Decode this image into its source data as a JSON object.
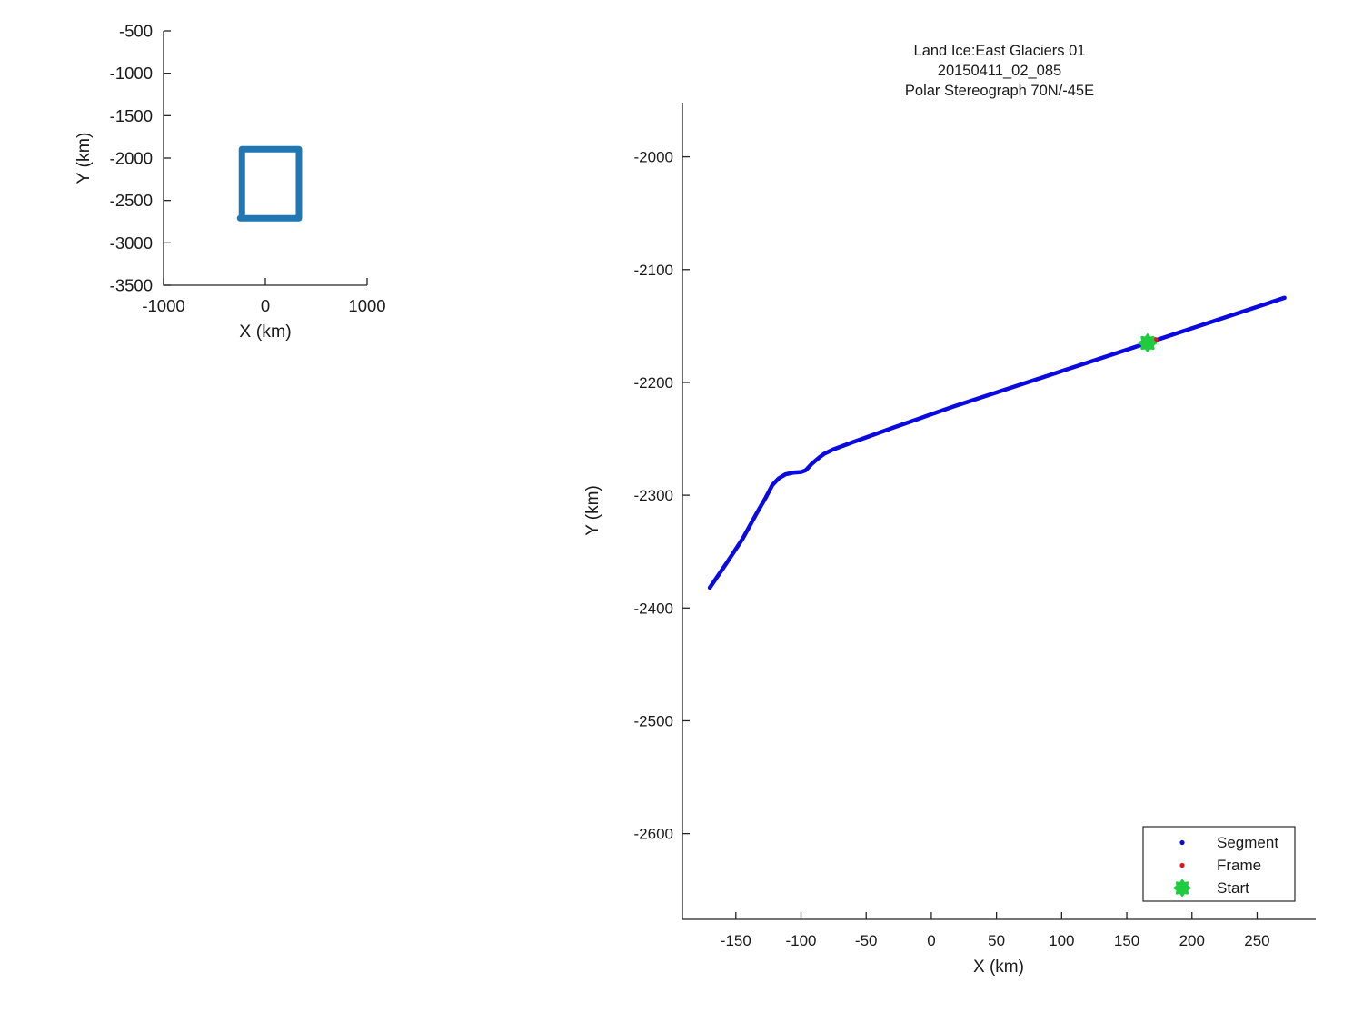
{
  "figure": {
    "background": "#ffffff",
    "text_color": "#1a1a1a",
    "spine_color": "#242424"
  },
  "chart_data": [
    {
      "id": "overview",
      "type": "line",
      "title": "",
      "xlabel": "X (km)",
      "ylabel": "Y (km)",
      "xlim": [
        -1000,
        1000
      ],
      "ylim": [
        -3500,
        -500
      ],
      "xticks": [
        -1000,
        0,
        1000
      ],
      "yticks": [
        -500,
        -1000,
        -1500,
        -2000,
        -2500,
        -3000,
        -3500
      ],
      "grid": false,
      "series": [
        {
          "name": "coverage-outline",
          "color": "#1f77b4",
          "stroke_width": 7,
          "x": [
            -230,
            -230,
            330,
            330,
            -248
          ],
          "y": [
            -2675,
            -1895,
            -1895,
            -2710,
            -2710
          ]
        }
      ]
    },
    {
      "id": "track",
      "type": "line",
      "title_lines": [
        "Land Ice:East Glaciers 01",
        "20150411_02_085",
        "Polar Stereograph 70N/-45E"
      ],
      "xlabel": "X (km)",
      "ylabel": "Y (km)",
      "xlim": [
        -191,
        295
      ],
      "ylim": [
        -2676,
        -1952
      ],
      "xticks": [
        -150,
        -100,
        -50,
        0,
        50,
        100,
        150,
        200,
        250
      ],
      "yticks": [
        -2000,
        -2100,
        -2200,
        -2300,
        -2400,
        -2500,
        -2600
      ],
      "grid": false,
      "series": [
        {
          "name": "segment-track",
          "color": "#0a0ae0",
          "stroke_width": 4.5,
          "x": [
            -170,
            -157,
            -145,
            -134,
            -127,
            -122,
            -117,
            -112,
            -106,
            -100,
            -96.5,
            -94,
            -92,
            -89.5,
            -86,
            -82.5,
            -75.5,
            -61.5,
            -29,
            18,
            100,
            166,
            271
          ],
          "y": [
            -2382,
            -2360,
            -2339,
            -2316,
            -2302,
            -2291,
            -2285,
            -2281.5,
            -2280,
            -2279.5,
            -2278,
            -2275,
            -2272.5,
            -2270,
            -2266.5,
            -2263.5,
            -2259.5,
            -2253.5,
            -2240,
            -2221,
            -2190,
            -2165,
            -2125
          ]
        }
      ],
      "markers": [
        {
          "name": "Frame",
          "shape": "dot",
          "color": "#e41414",
          "x": 172,
          "y": -2162.5,
          "size": 3.2
        },
        {
          "name": "Start",
          "shape": "star",
          "color": "#1fcc3f",
          "x": 166,
          "y": -2165,
          "size": 9
        }
      ],
      "legend": {
        "position": "lower right",
        "entries": [
          {
            "label": "Segment",
            "marker": "dot",
            "color": "#0a0ae0"
          },
          {
            "label": "Frame",
            "marker": "dot",
            "color": "#e41414"
          },
          {
            "label": "Start",
            "marker": "star",
            "color": "#1fcc3f"
          }
        ]
      }
    }
  ]
}
